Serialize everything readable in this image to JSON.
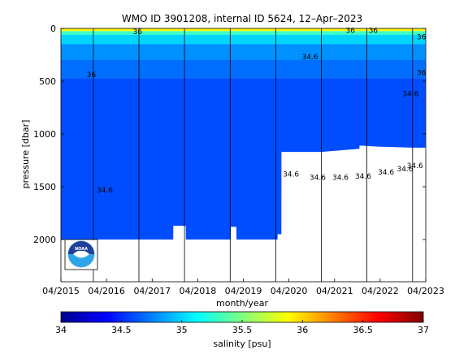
{
  "chart_data": {
    "type": "heatmap",
    "title": "WMO ID 3901208, internal ID 5624, 12–Apr–2023",
    "xlabel": "month/year",
    "ylabel": "pressure [dbar]",
    "colorbar_label": "salinity [psu]",
    "x_ticks": [
      "04/2015",
      "04/2016",
      "04/2017",
      "04/2018",
      "04/2019",
      "04/2020",
      "04/2021",
      "04/2022",
      "04/2023"
    ],
    "x_range": [
      "2015-04",
      "2023-04"
    ],
    "y_ticks": [
      0,
      500,
      1000,
      1500,
      2000
    ],
    "y_range": [
      2400,
      0
    ],
    "y_reversed": true,
    "colorbar_ticks": [
      34,
      34.5,
      35,
      35.5,
      36,
      36.5,
      37
    ],
    "colorbar_range": [
      34,
      37
    ],
    "colormap": "jet",
    "year_lines": [
      "2015-12-31",
      "2016-12-31",
      "2017-12-31",
      "2018-12-31",
      "2019-12-31",
      "2020-12-31",
      "2021-12-31",
      "2022-12-31"
    ],
    "max_profile_depth": [
      {
        "date": "2015-04-15",
        "depth": 2000
      },
      {
        "date": "2017-10-01",
        "depth": 2000
      },
      {
        "date": "2017-10-02",
        "depth": 1870
      },
      {
        "date": "2018-01-10",
        "depth": 1870
      },
      {
        "date": "2018-01-11",
        "depth": 2000
      },
      {
        "date": "2019-01-05",
        "depth": 2000
      },
      {
        "date": "2019-01-06",
        "depth": 1880
      },
      {
        "date": "2019-02-20",
        "depth": 1880
      },
      {
        "date": "2019-02-21",
        "depth": 2000
      },
      {
        "date": "2020-01-15",
        "depth": 2000
      },
      {
        "date": "2020-01-16",
        "depth": 1950
      },
      {
        "date": "2020-02-15",
        "depth": 1950
      },
      {
        "date": "2020-02-16",
        "depth": 1170
      },
      {
        "date": "2021-01-01",
        "depth": 1170
      },
      {
        "date": "2021-11-01",
        "depth": 1140
      },
      {
        "date": "2021-11-02",
        "depth": 1110
      },
      {
        "date": "2022-04-01",
        "depth": 1120
      },
      {
        "date": "2023-01-01",
        "depth": 1130
      },
      {
        "date": "2023-04-12",
        "depth": 1130
      }
    ],
    "salinity_layers": [
      {
        "top": 0,
        "bottom": 25,
        "salinity": 35.9
      },
      {
        "top": 25,
        "bottom": 60,
        "salinity": 35.3
      },
      {
        "top": 60,
        "bottom": 150,
        "salinity": 35.0
      },
      {
        "top": 150,
        "bottom": 300,
        "salinity": 34.8
      },
      {
        "top": 300,
        "bottom": 470,
        "salinity": 34.7
      },
      {
        "top": 470,
        "bottom": 2000,
        "salinity": 34.6
      }
    ],
    "contour_labels": [
      {
        "date": "2015-12-15",
        "depth": 440,
        "text": "36"
      },
      {
        "date": "2016-12-20",
        "depth": 30,
        "text": "36"
      },
      {
        "date": "2021-08-20",
        "depth": 20,
        "text": "36"
      },
      {
        "date": "2022-02-20",
        "depth": 20,
        "text": "36"
      },
      {
        "date": "2023-03-10",
        "depth": 80,
        "text": "36"
      },
      {
        "date": "2023-03-10",
        "depth": 420,
        "text": "36"
      },
      {
        "date": "2020-10-01",
        "depth": 270,
        "text": "34.6"
      },
      {
        "date": "2022-12-15",
        "depth": 620,
        "text": "34.6"
      },
      {
        "date": "2016-04-01",
        "depth": 1530,
        "text": "34.6"
      },
      {
        "date": "2020-05-01",
        "depth": 1380,
        "text": "34.6"
      },
      {
        "date": "2020-12-01",
        "depth": 1410,
        "text": "34.6"
      },
      {
        "date": "2021-06-01",
        "depth": 1410,
        "text": "34.6"
      },
      {
        "date": "2021-12-01",
        "depth": 1400,
        "text": "34.6"
      },
      {
        "date": "2022-06-01",
        "depth": 1360,
        "text": "34.6"
      },
      {
        "date": "2022-11-01",
        "depth": 1330,
        "text": "34.6"
      },
      {
        "date": "2023-01-20",
        "depth": 1300,
        "text": "34.6"
      }
    ],
    "grid": false
  }
}
